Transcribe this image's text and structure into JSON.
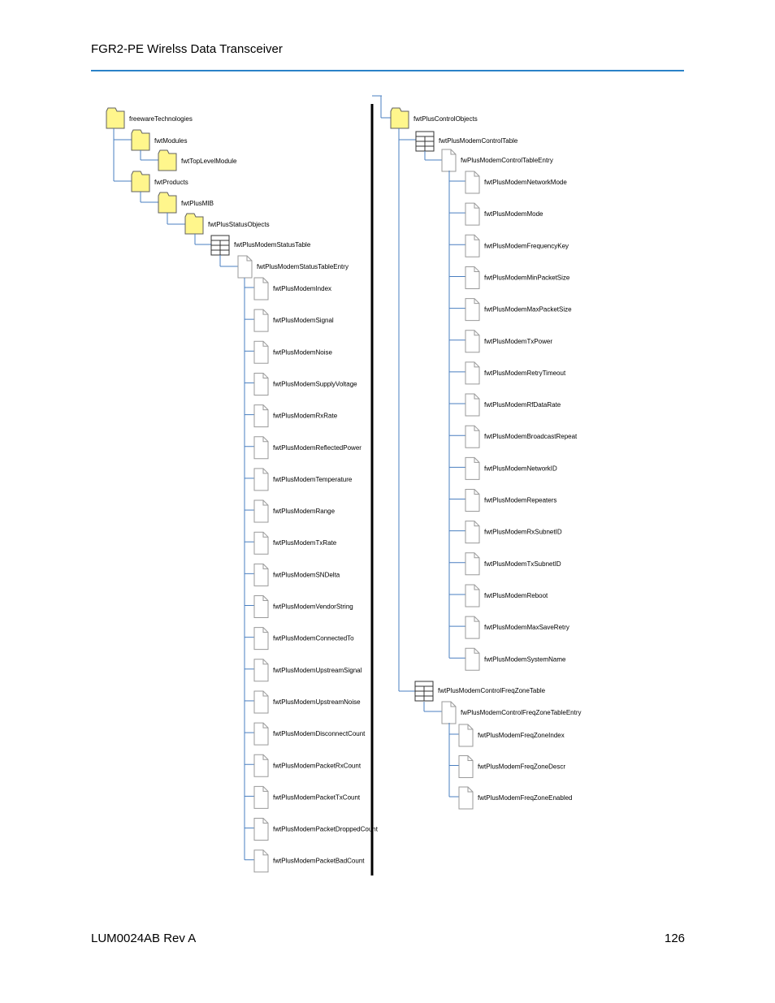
{
  "header": {
    "title": "FGR2-PE Wirelss Data Transceiver"
  },
  "footer": {
    "doc_id": "LUM0024AB Rev A",
    "page_number": "126"
  },
  "mib_tree": {
    "left": {
      "freewareTechnologies": "freewareTechnologies",
      "fwtModules": "fwtModules",
      "fwtTopLevelModule": "fwtTopLevelModule",
      "fwtProducts": "fwtProducts",
      "fwtPlusMIB": "fwtPlusMIB",
      "fwtPlusStatusObjects": "fwtPlusStatusObjects",
      "fwtPlusModemStatusTable": "fwtPlusModemStatusTable",
      "fwtPlusModemStatusTableEntry": "fwtPlusModemStatusTableEntry",
      "status_leaves": [
        "fwtPlusModemIndex",
        "fwtPlusModemSignal",
        "fwtPlusModemNoise",
        "fwtPlusModemSupplyVoltage",
        "fwtPlusModemRxRate",
        "fwtPlusModemReflectedPower",
        "fwtPlusModemTemperature",
        "fwtPlusModemRange",
        "fwtPlusModemTxRate",
        "fwtPlusModemSNDelta",
        "fwtPlusModemVendorString",
        "fwtPlusModemConnectedTo",
        "fwtPlusModemUpstreamSignal",
        "fwtPlusModemUpstreamNoise",
        "fwtPlusModemDisconnectCount",
        "fwtPlusModemPacketRxCount",
        "fwtPlusModemPacketTxCount",
        "fwtPlusModemPacketDroppedCount",
        "fwtPlusModemPacketBadCount"
      ]
    },
    "right": {
      "fwtPlusControlObjects": "fwtPlusControlObjects",
      "fwtPlusModemControlTable": "fwtPlusModemControlTable",
      "fwtPlusModemControlTableEntry": "fwPlusModemControlTableEntry",
      "control_leaves": [
        "fwtPlusModemNetworkMode",
        "fwtPlusModemMode",
        "fwtPlusModemFrequencyKey",
        "fwtPlusModemMinPacketSize",
        "fwtPlusModemMaxPacketSize",
        "fwtPlusModemTxPower",
        "fwtPlusModemRetryTimeout",
        "fwtPlusModemRfDataRate",
        "fwtPlusModemBroadcastRepeat",
        "fwtPlusModemNetworkID",
        "fwtPlusModemRepeaters",
        "fwtPlusModemRxSubnetID",
        "fwtPlusModemTxSubnetID",
        "fwtPlusModemReboot",
        "fwtPlusModemMaxSaveRetry",
        "fwtPlusModemSystemName"
      ],
      "fwtPlusModemControlFreqZoneTable": "fwtPlusModemControlFreqZoneTable",
      "fwtPlusModemControlFreqZoneTableEntry": "fwPlusModemControlFreqZoneTableEntry",
      "freqzone_leaves": [
        "fwtPlusModemFreqZoneIndex",
        "fwtPlusModemFreqZoneDescr",
        "fwtPlusModemFreqZoneEnabled"
      ]
    }
  },
  "colors": {
    "header_rule": "#2a82c8",
    "connector": "#4a7fc0",
    "folder_fill": "#fff68c",
    "icon_stroke": "#606060",
    "divider": "#000000"
  }
}
